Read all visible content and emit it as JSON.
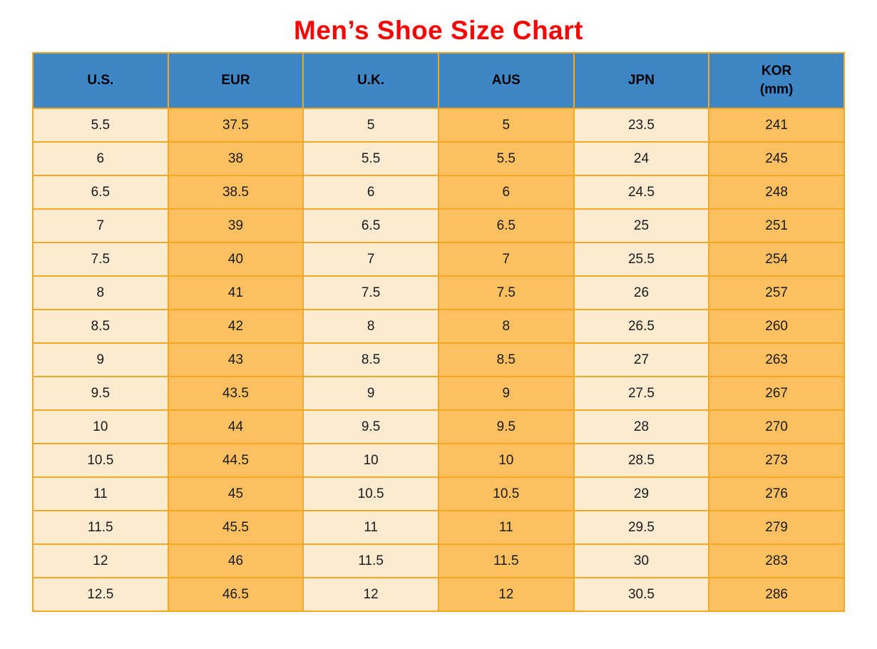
{
  "title": "Men’s Shoe Size Chart",
  "colors": {
    "title_red": "#ff0000",
    "header_blue": "#3e86c6",
    "border_orange": "#f5a623",
    "cell_cream": "#fcebd0",
    "cell_orange": "#fdc061",
    "text_dark": "#1a1a1a"
  },
  "header_cells": [
    {
      "label": "U.S."
    },
    {
      "label": "EUR"
    },
    {
      "label": "U.K."
    },
    {
      "label": "AUS"
    },
    {
      "label": "JPN"
    },
    {
      "label": "KOR",
      "sublabel": "(mm)"
    }
  ],
  "chart_data": {
    "type": "table",
    "title": "Men’s Shoe Size Chart",
    "columns": [
      "U.S.",
      "EUR",
      "U.K.",
      "AUS",
      "JPN",
      "KOR (mm)"
    ],
    "rows": [
      [
        "5.5",
        "37.5",
        "5",
        "5",
        "23.5",
        "241"
      ],
      [
        "6",
        "38",
        "5.5",
        "5.5",
        "24",
        "245"
      ],
      [
        "6.5",
        "38.5",
        "6",
        "6",
        "24.5",
        "248"
      ],
      [
        "7",
        "39",
        "6.5",
        "6.5",
        "25",
        "251"
      ],
      [
        "7.5",
        "40",
        "7",
        "7",
        "25.5",
        "254"
      ],
      [
        "8",
        "41",
        "7.5",
        "7.5",
        "26",
        "257"
      ],
      [
        "8.5",
        "42",
        "8",
        "8",
        "26.5",
        "260"
      ],
      [
        "9",
        "43",
        "8.5",
        "8.5",
        "27",
        "263"
      ],
      [
        "9.5",
        "43.5",
        "9",
        "9",
        "27.5",
        "267"
      ],
      [
        "10",
        "44",
        "9.5",
        "9.5",
        "28",
        "270"
      ],
      [
        "10.5",
        "44.5",
        "10",
        "10",
        "28.5",
        "273"
      ],
      [
        "11",
        "45",
        "10.5",
        "10.5",
        "29",
        "276"
      ],
      [
        "11.5",
        "45.5",
        "11",
        "11",
        "29.5",
        "279"
      ],
      [
        "12",
        "46",
        "11.5",
        "11.5",
        "30",
        "283"
      ],
      [
        "12.5",
        "46.5",
        "12",
        "12",
        "30.5",
        "286"
      ]
    ]
  }
}
